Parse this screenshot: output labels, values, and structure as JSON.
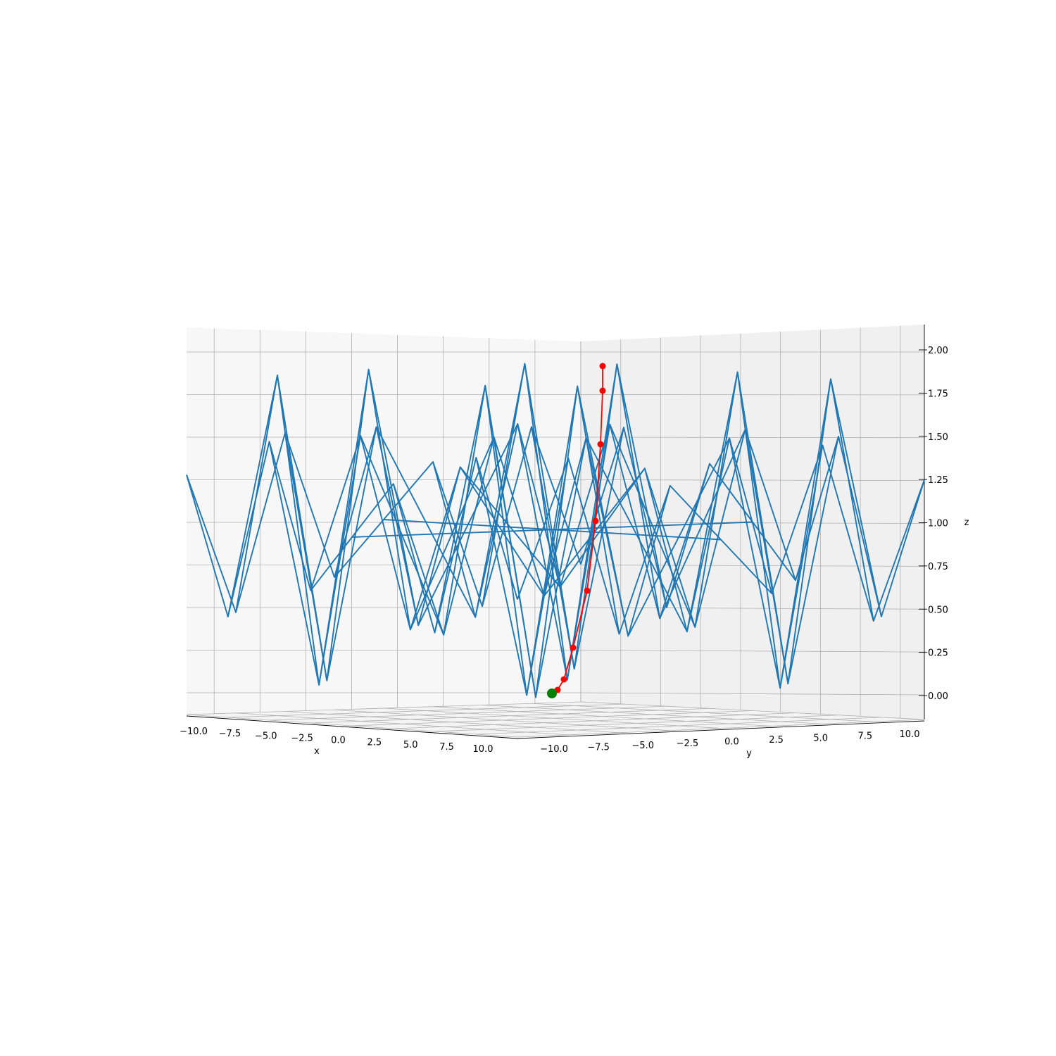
{
  "chart_data": {
    "type": "wireframe-3d",
    "xlabel": "x",
    "ylabel": "y",
    "zlabel": "z",
    "xlim": [
      -10,
      10
    ],
    "ylim": [
      -10,
      10
    ],
    "zlim": [
      0,
      2
    ],
    "x_ticks": [
      "−10.0",
      "−7.5",
      "−5.0",
      "−2.5",
      "0.0",
      "2.5",
      "5.0",
      "7.5",
      "10.0"
    ],
    "y_ticks": [
      "−10.0",
      "−7.5",
      "−5.0",
      "−2.5",
      "0.0",
      "2.5",
      "5.0",
      "7.5",
      "10.0"
    ],
    "z_ticks": [
      "0.00",
      "0.25",
      "0.50",
      "0.75",
      "1.00",
      "1.25",
      "1.50",
      "1.75",
      "2.00"
    ],
    "surface": {
      "function": "z = 1 + sin(x)·sin(y)",
      "grid": 9,
      "color": "#1f77b4"
    },
    "descent_path": {
      "color": "#ff0000",
      "points": [
        [
          -6.6,
          -1.6,
          1.96
        ],
        [
          -6.6,
          -1.6,
          1.81
        ],
        [
          -6.7,
          -1.8,
          1.5
        ],
        [
          -7.0,
          -2.0,
          1.05
        ],
        [
          -7.3,
          -2.5,
          0.62
        ],
        [
          -7.6,
          -3.4,
          0.29
        ],
        [
          -7.8,
          -4.3,
          0.11
        ],
        [
          -7.9,
          -4.7,
          0.04
        ]
      ]
    },
    "minimum_point": {
      "color": "#008000",
      "point": [
        -7.85,
        -4.71,
        0.0
      ]
    },
    "grid": true
  }
}
